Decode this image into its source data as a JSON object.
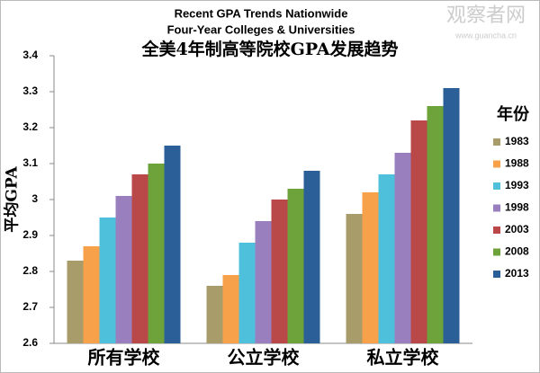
{
  "chart_data": {
    "type": "bar",
    "title": "Recent GPA Trends Nationwide",
    "subtitle": "Four-Year Colleges & Universities",
    "title_zh": "全美4年制高等院校GPA发展趋势",
    "y_label": "平均GPA",
    "legend_title": "年份",
    "watermark": [
      "观察者网",
      "www.guancha.cn"
    ],
    "categories": [
      "所有学校",
      "公立学校",
      "私立学校"
    ],
    "series": [
      {
        "name": "1983",
        "color": "#a89c6b",
        "values": [
          2.83,
          2.76,
          2.96
        ]
      },
      {
        "name": "1988",
        "color": "#f7a14a",
        "values": [
          2.87,
          2.79,
          3.02
        ]
      },
      {
        "name": "1993",
        "color": "#4fc0dc",
        "values": [
          2.95,
          2.88,
          3.07
        ]
      },
      {
        "name": "1998",
        "color": "#9a7fbf",
        "values": [
          3.01,
          2.94,
          3.13
        ]
      },
      {
        "name": "2003",
        "color": "#b94848",
        "values": [
          3.07,
          3.0,
          3.22
        ]
      },
      {
        "name": "2008",
        "color": "#6ea23a",
        "values": [
          3.1,
          3.03,
          3.26
        ]
      },
      {
        "name": "2013",
        "color": "#2a5f98",
        "values": [
          3.15,
          3.08,
          3.31
        ]
      }
    ],
    "ylim": [
      2.6,
      3.4
    ],
    "yticks": [
      2.6,
      2.7,
      2.8,
      2.9,
      3,
      3.1,
      3.2,
      3.3,
      3.4
    ],
    "legend": "right"
  }
}
